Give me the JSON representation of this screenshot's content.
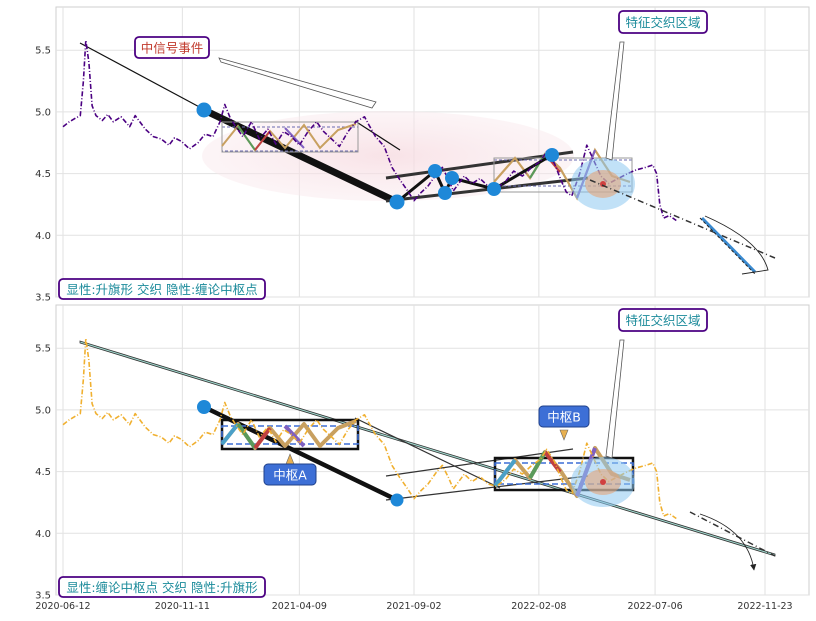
{
  "chart_data": [
    {
      "type": "line",
      "panel": "top",
      "title": "",
      "xlabel": "",
      "ylabel": "",
      "ylim": [
        3.5,
        5.85
      ],
      "yticks": [
        3.5,
        4.0,
        4.5,
        5.0,
        5.5
      ],
      "ytick_labels": [
        "3.5",
        "4.0",
        "4.5",
        "5.0",
        "5.5"
      ],
      "grid": true,
      "series": [
        {
          "color": "#4b0082",
          "style": "dash-dot",
          "points": [
            [
              "2020-06-12",
              4.88
            ],
            [
              "2020-06-20",
              4.92
            ],
            [
              "2020-06-28",
              4.95
            ],
            [
              "2020-07-04",
              4.97
            ],
            [
              "2020-07-08",
              5.25
            ],
            [
              "2020-07-11",
              5.58
            ],
            [
              "2020-07-15",
              5.4
            ],
            [
              "2020-07-19",
              5.05
            ],
            [
              "2020-07-24",
              4.97
            ],
            [
              "2020-08-01",
              4.93
            ],
            [
              "2020-08-08",
              4.98
            ],
            [
              "2020-08-15",
              4.92
            ],
            [
              "2020-08-25",
              4.96
            ],
            [
              "2020-09-05",
              4.88
            ],
            [
              "2020-09-12",
              4.97
            ],
            [
              "2020-09-25",
              4.86
            ],
            [
              "2020-10-05",
              4.8
            ],
            [
              "2020-10-15",
              4.78
            ],
            [
              "2020-10-25",
              4.73
            ],
            [
              "2020-11-01",
              4.79
            ],
            [
              "2020-11-10",
              4.76
            ],
            [
              "2020-11-20",
              4.7
            ],
            [
              "2020-12-01",
              4.75
            ],
            [
              "2020-12-10",
              4.82
            ],
            [
              "2020-12-20",
              4.8
            ],
            [
              "2020-12-29",
              4.92
            ],
            [
              "2021-01-04",
              5.06
            ],
            [
              "2021-01-11",
              4.95
            ],
            [
              "2021-01-18",
              4.88
            ],
            [
              "2021-01-27",
              4.8
            ],
            [
              "2021-02-07",
              4.92
            ],
            [
              "2021-02-17",
              4.78
            ],
            [
              "2021-02-28",
              4.86
            ],
            [
              "2021-03-10",
              4.74
            ],
            [
              "2021-03-20",
              4.84
            ],
            [
              "2021-03-30",
              4.8
            ],
            [
              "2021-04-09",
              4.73
            ],
            [
              "2021-04-20",
              4.84
            ],
            [
              "2021-05-01",
              4.92
            ],
            [
              "2021-05-10",
              4.84
            ],
            [
              "2021-05-20",
              4.78
            ],
            [
              "2021-05-30",
              4.72
            ],
            [
              "2021-06-10",
              4.84
            ],
            [
              "2021-06-20",
              4.92
            ],
            [
              "2021-07-01",
              4.96
            ],
            [
              "2021-07-06",
              4.9
            ],
            [
              "2021-07-15",
              4.8
            ],
            [
              "2021-07-26",
              4.72
            ],
            [
              "2021-08-05",
              4.55
            ],
            [
              "2021-08-15",
              4.45
            ],
            [
              "2021-08-25",
              4.36
            ],
            [
              "2021-09-02",
              4.28
            ],
            [
              "2021-09-10",
              4.34
            ],
            [
              "2021-09-20",
              4.4
            ],
            [
              "2021-10-01",
              4.5
            ],
            [
              "2021-10-08",
              4.55
            ],
            [
              "2021-10-16",
              4.45
            ],
            [
              "2021-10-22",
              4.36
            ],
            [
              "2021-10-29",
              4.42
            ],
            [
              "2021-11-05",
              4.48
            ],
            [
              "2021-11-15",
              4.42
            ],
            [
              "2021-11-25",
              4.46
            ],
            [
              "2021-12-05",
              4.4
            ],
            [
              "2021-12-16",
              4.38
            ],
            [
              "2021-12-28",
              4.44
            ],
            [
              "2022-01-07",
              4.52
            ],
            [
              "2022-01-18",
              4.48
            ],
            [
              "2022-01-30",
              4.55
            ],
            [
              "2022-02-10",
              4.6
            ],
            [
              "2022-02-18",
              4.68
            ],
            [
              "2022-02-28",
              4.58
            ],
            [
              "2022-03-08",
              4.45
            ],
            [
              "2022-03-15",
              4.35
            ],
            [
              "2022-03-22",
              4.32
            ],
            [
              "2022-04-01",
              4.5
            ],
            [
              "2022-04-10",
              4.73
            ],
            [
              "2022-04-18",
              4.62
            ],
            [
              "2022-04-28",
              4.48
            ],
            [
              "2022-05-08",
              4.42
            ],
            [
              "2022-05-20",
              4.46
            ],
            [
              "2022-06-01",
              4.5
            ],
            [
              "2022-06-12",
              4.53
            ],
            [
              "2022-06-24",
              4.55
            ],
            [
              "2022-07-03",
              4.57
            ],
            [
              "2022-07-08",
              4.5
            ],
            [
              "2022-07-12",
              4.25
            ],
            [
              "2022-07-17",
              4.14
            ],
            [
              "2022-07-24",
              4.16
            ],
            [
              "2022-08-02",
              4.12
            ]
          ]
        }
      ]
    },
    {
      "type": "line",
      "panel": "bottom",
      "title": "",
      "xlabel": "",
      "ylabel": "",
      "ylim": [
        3.5,
        5.85
      ],
      "yticks": [
        3.5,
        4.0,
        4.5,
        5.0,
        5.5
      ],
      "ytick_labels": [
        "3.5",
        "4.0",
        "4.5",
        "5.0",
        "5.5"
      ],
      "grid": true,
      "x_tick_labels": [
        "2020-06-12",
        "2020-11-11",
        "2021-04-09",
        "2021-09-02",
        "2022-02-08",
        "2022-07-06",
        "2022-11-23"
      ],
      "series": [
        {
          "color": "#f0b030",
          "style": "dash-dot",
          "points": [
            [
              "2020-06-12",
              4.88
            ],
            [
              "2020-06-20",
              4.92
            ],
            [
              "2020-06-28",
              4.95
            ],
            [
              "2020-07-04",
              4.97
            ],
            [
              "2020-07-08",
              5.25
            ],
            [
              "2020-07-11",
              5.58
            ],
            [
              "2020-07-15",
              5.4
            ],
            [
              "2020-07-19",
              5.05
            ],
            [
              "2020-07-24",
              4.97
            ],
            [
              "2020-08-01",
              4.93
            ],
            [
              "2020-08-08",
              4.98
            ],
            [
              "2020-08-15",
              4.92
            ],
            [
              "2020-08-25",
              4.96
            ],
            [
              "2020-09-05",
              4.88
            ],
            [
              "2020-09-12",
              4.97
            ],
            [
              "2020-09-25",
              4.86
            ],
            [
              "2020-10-05",
              4.8
            ],
            [
              "2020-10-15",
              4.78
            ],
            [
              "2020-10-25",
              4.73
            ],
            [
              "2020-11-01",
              4.79
            ],
            [
              "2020-11-10",
              4.76
            ],
            [
              "2020-11-20",
              4.7
            ],
            [
              "2020-12-01",
              4.75
            ],
            [
              "2020-12-10",
              4.82
            ],
            [
              "2020-12-20",
              4.8
            ],
            [
              "2020-12-29",
              4.92
            ],
            [
              "2021-01-04",
              5.06
            ],
            [
              "2021-01-11",
              4.95
            ],
            [
              "2021-01-18",
              4.88
            ],
            [
              "2021-01-27",
              4.8
            ],
            [
              "2021-02-07",
              4.92
            ],
            [
              "2021-02-17",
              4.78
            ],
            [
              "2021-02-28",
              4.86
            ],
            [
              "2021-03-10",
              4.74
            ],
            [
              "2021-03-20",
              4.84
            ],
            [
              "2021-03-30",
              4.8
            ],
            [
              "2021-04-09",
              4.73
            ],
            [
              "2021-04-20",
              4.84
            ],
            [
              "2021-05-01",
              4.92
            ],
            [
              "2021-05-10",
              4.84
            ],
            [
              "2021-05-20",
              4.78
            ],
            [
              "2021-05-30",
              4.72
            ],
            [
              "2021-06-10",
              4.84
            ],
            [
              "2021-06-20",
              4.92
            ],
            [
              "2021-07-01",
              4.96
            ],
            [
              "2021-07-06",
              4.9
            ],
            [
              "2021-07-15",
              4.8
            ],
            [
              "2021-07-26",
              4.72
            ],
            [
              "2021-08-05",
              4.55
            ],
            [
              "2021-08-15",
              4.45
            ],
            [
              "2021-08-25",
              4.36
            ],
            [
              "2021-09-02",
              4.28
            ],
            [
              "2021-09-10",
              4.34
            ],
            [
              "2021-09-20",
              4.4
            ],
            [
              "2021-10-01",
              4.5
            ],
            [
              "2021-10-08",
              4.55
            ],
            [
              "2021-10-16",
              4.45
            ],
            [
              "2021-10-22",
              4.36
            ],
            [
              "2021-10-29",
              4.42
            ],
            [
              "2021-11-05",
              4.48
            ],
            [
              "2021-11-15",
              4.42
            ],
            [
              "2021-11-25",
              4.46
            ],
            [
              "2021-12-05",
              4.4
            ],
            [
              "2021-12-16",
              4.38
            ],
            [
              "2021-12-28",
              4.44
            ],
            [
              "2022-01-07",
              4.52
            ],
            [
              "2022-01-18",
              4.48
            ],
            [
              "2022-01-30",
              4.55
            ],
            [
              "2022-02-10",
              4.6
            ],
            [
              "2022-02-18",
              4.68
            ],
            [
              "2022-02-28",
              4.58
            ],
            [
              "2022-03-08",
              4.45
            ],
            [
              "2022-03-15",
              4.35
            ],
            [
              "2022-03-22",
              4.32
            ],
            [
              "2022-04-01",
              4.5
            ],
            [
              "2022-04-10",
              4.73
            ],
            [
              "2022-04-18",
              4.62
            ],
            [
              "2022-04-28",
              4.48
            ],
            [
              "2022-05-08",
              4.42
            ],
            [
              "2022-05-20",
              4.46
            ],
            [
              "2022-06-01",
              4.5
            ],
            [
              "2022-06-12",
              4.53
            ],
            [
              "2022-06-24",
              4.55
            ],
            [
              "2022-07-03",
              4.57
            ],
            [
              "2022-07-08",
              4.5
            ],
            [
              "2022-07-12",
              4.25
            ],
            [
              "2022-07-17",
              4.14
            ],
            [
              "2022-07-24",
              4.16
            ],
            [
              "2022-08-02",
              4.12
            ]
          ]
        }
      ]
    }
  ],
  "annotations": {
    "top_signal_label": "中信号事件",
    "top_feature_label": "特征交织区域",
    "top_legend": "显性:升旗形 交织 隐性:缠论中枢点",
    "bottom_feature_label": "特征交织区域",
    "bottom_center_a": "中枢A",
    "bottom_center_b": "中枢B",
    "bottom_legend": "显性:缠论中枢点 交织 隐性:升旗形"
  },
  "colors": {
    "top_series": "#4b0082",
    "bottom_series": "#f0b030",
    "label_box_border": "#4b0082",
    "label_text_teal": "#1a8a9a",
    "label_text_red": "#c0392b",
    "center_badge": "#3d6fd6",
    "marker_blue": "#1e88d8",
    "glow_blue": "#8ec8f0",
    "glow_orange": "#e8a070"
  }
}
